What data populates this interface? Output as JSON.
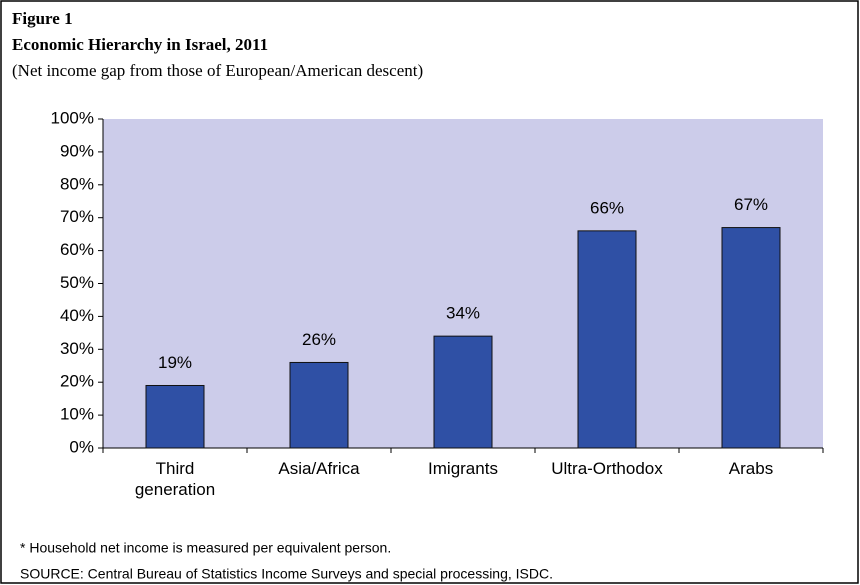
{
  "chart_data": {
    "type": "bar",
    "label": "Figure 1",
    "title": "Economic Hierarchy in Israel, 2011",
    "subtitle": "(Net income gap from those of European/American descent)",
    "categories": [
      "Third generation",
      "Asia/Africa",
      "Imigrants",
      "Ultra-Orthodox",
      "Arabs"
    ],
    "values": [
      19,
      26,
      34,
      66,
      67
    ],
    "value_labels": [
      "19%",
      "26%",
      "34%",
      "66%",
      "67%"
    ],
    "color": "#2f50a5",
    "ylim": [
      0,
      100
    ],
    "yticks": [
      {
        "value": 0,
        "label": "0%"
      },
      {
        "value": 10,
        "label": "10%"
      },
      {
        "value": 20,
        "label": "20%"
      },
      {
        "value": 30,
        "label": "30%"
      },
      {
        "value": 40,
        "label": "40%"
      },
      {
        "value": 50,
        "label": "50%"
      },
      {
        "value": 60,
        "label": "60%"
      },
      {
        "value": 70,
        "label": "70%"
      },
      {
        "value": 80,
        "label": "80%"
      },
      {
        "value": 90,
        "label": "90%"
      },
      {
        "value": 100,
        "label": "100%"
      }
    ],
    "grid": false,
    "notes": [
      "* Household net income is measured per equivalent person.",
      "SOURCE:  Central Bureau of Statistics Income Surveys and special processing, ISDC."
    ]
  }
}
